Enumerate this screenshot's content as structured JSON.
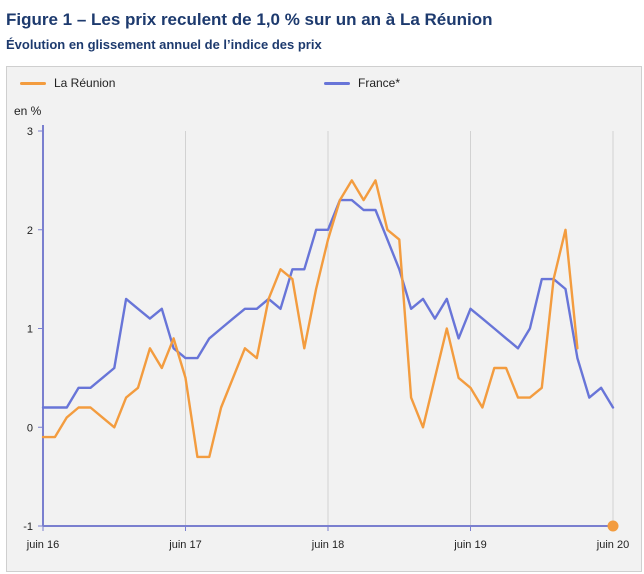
{
  "header": {
    "title": "Figure 1 – Les prix reculent de 1,0 % sur un an à La Réunion",
    "subtitle": "Évolution en glissement annuel de l’indice des prix"
  },
  "chart_data": {
    "type": "line",
    "title": "Figure 1 – Les prix reculent de 1,0 % sur un an à La Réunion",
    "subtitle": "Évolution en glissement annuel de l’indice des prix",
    "ylabel": "en %",
    "xlabel": "",
    "ylim": [
      -1,
      3
    ],
    "yticks": [
      "3",
      "2",
      "1",
      "0",
      "-1"
    ],
    "ytick_values": [
      3,
      2,
      1,
      0,
      -1
    ],
    "xticks": [
      "juin 16",
      "juin 17",
      "juin 18",
      "juin 19",
      "juin 20"
    ],
    "xtick_positions": [
      0,
      12,
      24,
      36,
      48
    ],
    "grid": "vertical",
    "legend_position": "top",
    "x": [
      0,
      1,
      2,
      3,
      4,
      5,
      6,
      7,
      8,
      9,
      10,
      11,
      12,
      13,
      14,
      15,
      16,
      17,
      18,
      19,
      20,
      21,
      22,
      23,
      24,
      25,
      26,
      27,
      28,
      29,
      30,
      31,
      32,
      33,
      34,
      35,
      36,
      37,
      38,
      39,
      40,
      41,
      42,
      43,
      44,
      45,
      46,
      47,
      48
    ],
    "series": [
      {
        "name": "La Réunion",
        "color": "#f39c3f",
        "values": [
          -0.1,
          -0.1,
          0.1,
          0.2,
          0.2,
          0.1,
          0.0,
          0.3,
          0.4,
          0.8,
          0.6,
          0.9,
          0.5,
          -0.3,
          -0.3,
          0.2,
          0.5,
          0.8,
          0.7,
          1.3,
          1.6,
          1.5,
          0.8,
          1.4,
          1.9,
          2.3,
          2.5,
          2.3,
          2.5,
          2.0,
          1.9,
          0.3,
          0.0,
          0.5,
          1.0,
          0.5,
          0.4,
          0.2,
          0.6,
          0.6,
          0.3,
          0.3,
          0.4,
          1.5,
          2.0,
          0.8,
          null,
          null,
          -1.0
        ]
      },
      {
        "name": "France*",
        "color": "#6875d8",
        "values": [
          0.2,
          0.2,
          0.2,
          0.4,
          0.4,
          0.5,
          0.6,
          1.3,
          1.2,
          1.1,
          1.2,
          0.8,
          0.7,
          0.7,
          0.9,
          1.0,
          1.1,
          1.2,
          1.2,
          1.3,
          1.2,
          1.6,
          1.6,
          2.0,
          2.0,
          2.3,
          2.3,
          2.2,
          2.2,
          1.9,
          1.6,
          1.2,
          1.3,
          1.1,
          1.3,
          0.9,
          1.2,
          1.1,
          1.0,
          0.9,
          0.8,
          1.0,
          1.5,
          1.5,
          1.4,
          0.7,
          0.3,
          0.4,
          0.2
        ]
      }
    ]
  }
}
